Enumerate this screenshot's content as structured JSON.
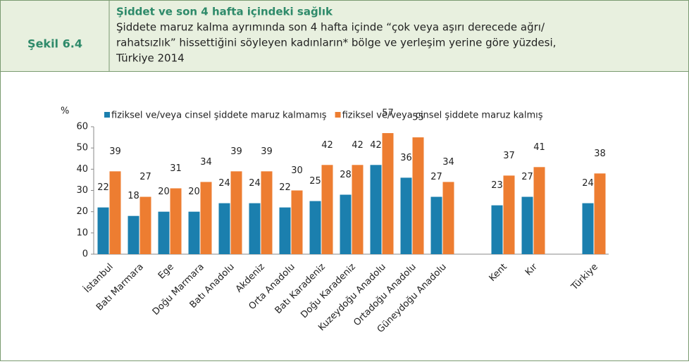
{
  "chart_data": {
    "type": "bar",
    "figure_label": "Şekil 6.4",
    "title": "Şiddet ve son 4 hafta içindeki sağlık",
    "subtitle": [
      "Şiddete maruz kalma ayrımında son 4 hafta içinde “çok veya aşırı derecede ağrı/",
      "rahatsızlık” hissettiğini söyleyen kadınların* bölge ve yerleşim yerine göre yüzdesi,",
      "Türkiye 2014"
    ],
    "y_label": "%",
    "categories": [
      "İstanbul",
      "Batı Marmara",
      "Ege",
      "Doğu Marmara",
      "Batı Anadolu",
      "Akdeniz",
      "Orta Anadolu",
      "Batı Karadeniz",
      "Doğu Karadeniz",
      "Kuzeydoğu Anadolu",
      "Ortadoğu Anadolu",
      "Güneydoğu Anadolu",
      null,
      "Kent",
      "Kır",
      null,
      "Türkiye"
    ],
    "series": [
      {
        "name": "fiziksel ve/veya cinsel şiddete maruz kalmamış",
        "color": "#1b7fae",
        "values": [
          22,
          18,
          20,
          20,
          24,
          24,
          22,
          25,
          28,
          42,
          36,
          27,
          null,
          23,
          27,
          null,
          24
        ]
      },
      {
        "name": "fiziksel ve/veya cinsel şiddete maruz kalmış",
        "color": "#ed7d31",
        "values": [
          39,
          27,
          31,
          34,
          39,
          39,
          30,
          42,
          42,
          57,
          55,
          34,
          null,
          37,
          41,
          null,
          38
        ]
      }
    ],
    "ylim": [
      0,
      60
    ],
    "yticks": [
      0,
      10,
      20,
      30,
      40,
      50,
      60
    ],
    "legend": "top"
  }
}
